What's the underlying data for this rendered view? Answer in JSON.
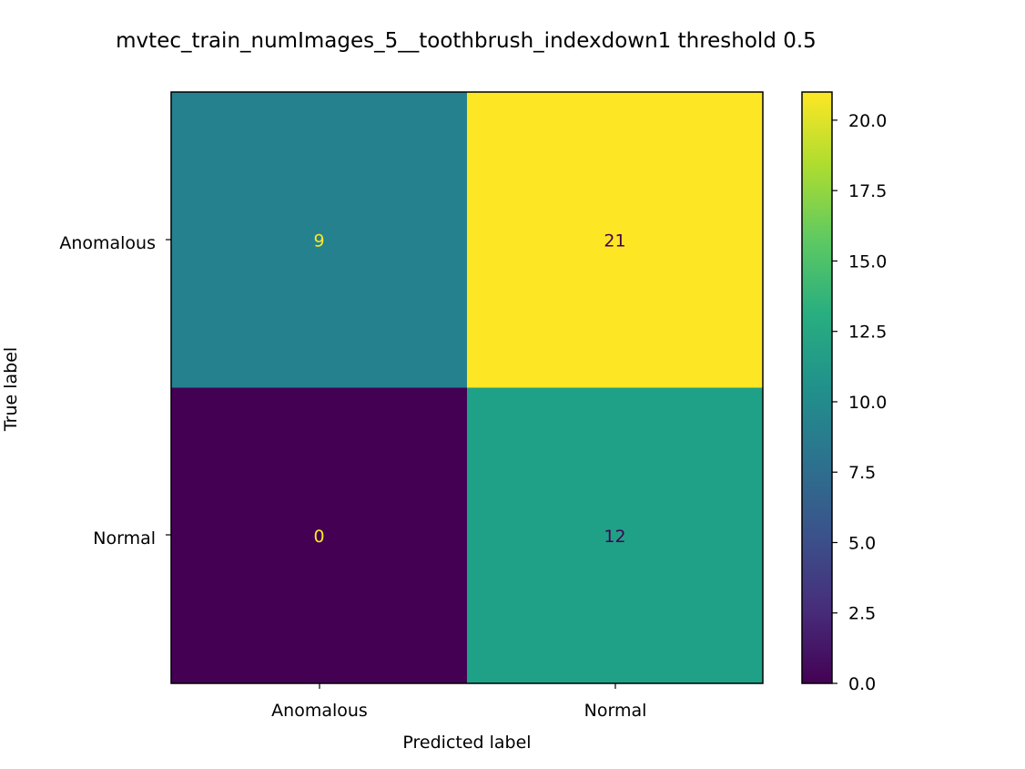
{
  "chart_data": {
    "type": "heatmap",
    "title": "mvtec_train_numImages_5__toothbrush_indexdown1 threshold 0.5",
    "xlabel": "Predicted label",
    "ylabel": "True label",
    "x_categories": [
      "Anomalous",
      "Normal"
    ],
    "y_categories": [
      "Anomalous",
      "Normal"
    ],
    "values": [
      [
        9,
        21
      ],
      [
        0,
        12
      ]
    ],
    "colormap": "viridis",
    "colorbar": {
      "range": [
        0,
        21
      ],
      "ticks": [
        "0.0",
        "2.5",
        "5.0",
        "7.5",
        "10.0",
        "12.5",
        "15.0",
        "17.5",
        "20.0"
      ]
    },
    "colors": {
      "9": "#26818e",
      "21": "#fde725",
      "0": "#440154",
      "12": "#1fa187",
      "light_text": "#fde725",
      "dark_text": "#440154"
    }
  }
}
